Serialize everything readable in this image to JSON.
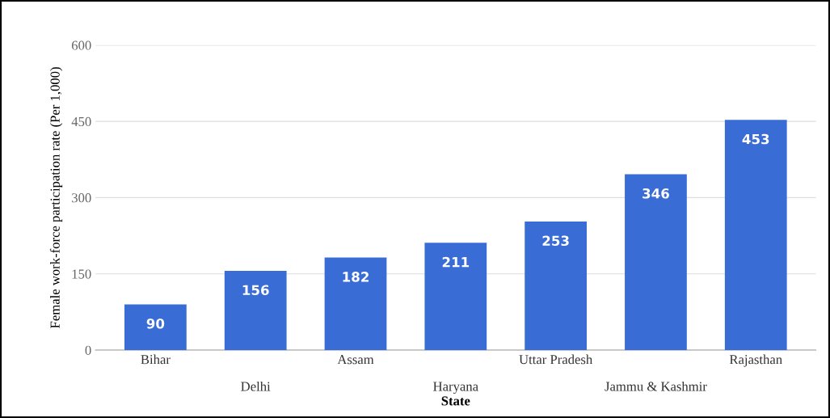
{
  "chart_data": {
    "type": "bar",
    "xlabel": "State",
    "ylabel": "Female work-force participation rate (Per 1,000)",
    "categories": [
      "Bihar",
      "Delhi",
      "Assam",
      "Haryana",
      "Uttar Pradesh",
      "Jammu & Kashmir",
      "Rajasthan"
    ],
    "values": [
      90,
      156,
      182,
      211,
      253,
      346,
      453
    ],
    "color": "#3a6cd6",
    "ylim": [
      0,
      600
    ],
    "yticks": [
      0,
      150,
      300,
      450,
      600
    ],
    "grid": "y",
    "data_labels": true
  }
}
